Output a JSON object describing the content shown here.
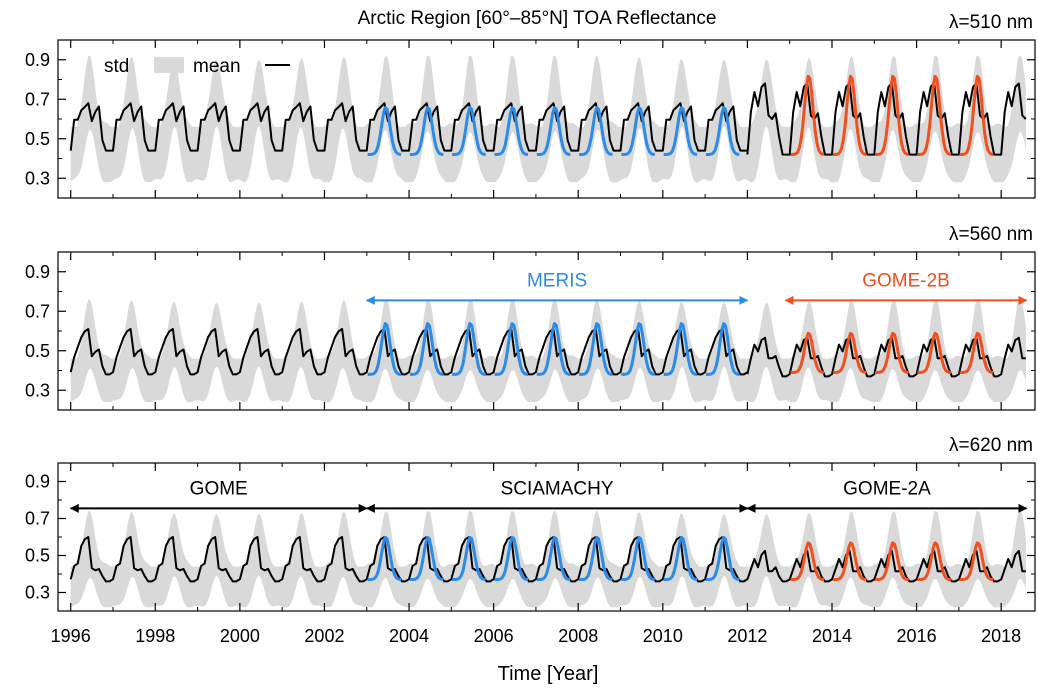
{
  "title": "Arctic Region [60°–85°N] TOA Reflectance",
  "xlabel": "Time [Year]",
  "colors": {
    "mean": "#000000",
    "std": "#d9d9d9",
    "meris": "#2b8be8",
    "gome2b": "#f0501e",
    "instrument": "#000000"
  },
  "legend": {
    "std_label": "std",
    "mean_label": "mean",
    "placement": "top-left of top panel"
  },
  "chart_data": [
    {
      "type": "line",
      "panel": "top",
      "wavelength_label": "λ=510 nm",
      "xlim": [
        1995.7,
        2018.8
      ],
      "ylim": [
        0.2,
        1.0
      ],
      "xticks": [
        "1996",
        "1998",
        "2000",
        "2002",
        "2004",
        "2006",
        "2008",
        "2010",
        "2012",
        "2014",
        "2016",
        "2018"
      ],
      "yticks": [
        "0.3",
        "0.5",
        "0.7",
        "0.9"
      ],
      "series": [
        {
          "name": "mean",
          "segments": [
            {
              "years": [
                1996.0,
                2012.0
              ],
              "min": 0.44,
              "max": 0.68,
              "shape": [
                0.0,
                0.65,
                0.65,
                0.85,
                0.92,
                1.0,
                0.62,
                0.82,
                0.93,
                0.22,
                0.0,
                0.0
              ]
            },
            {
              "years": [
                2012.0,
                2018.6
              ],
              "min": 0.42,
              "max": 0.78,
              "shape": [
                0.0,
                0.6,
                0.88,
                0.68,
                0.95,
                1.0,
                0.55,
                0.5,
                0.58,
                0.25,
                0.0,
                0.0
              ]
            }
          ]
        },
        {
          "name": "std",
          "band": {
            "years": [
              1996.0,
              2018.6
            ],
            "lower_min": 0.28,
            "lower_max": 0.58,
            "upper_min": 0.56,
            "upper_max": 0.92
          }
        },
        {
          "name": "MERIS",
          "years": [
            2003.0,
            2012.0
          ],
          "min": 0.42,
          "max": 0.66
        },
        {
          "name": "GOME-2B",
          "years": [
            2013.0,
            2018.0
          ],
          "min": 0.42,
          "max": 0.82
        }
      ]
    },
    {
      "type": "line",
      "panel": "middle",
      "wavelength_label": "λ=560 nm",
      "xlim": [
        1995.7,
        2018.8
      ],
      "ylim": [
        0.2,
        1.0
      ],
      "xticks": [
        "1996",
        "1998",
        "2000",
        "2002",
        "2004",
        "2006",
        "2008",
        "2010",
        "2012",
        "2014",
        "2016",
        "2018"
      ],
      "yticks": [
        "0.3",
        "0.5",
        "0.7",
        "0.9"
      ],
      "series": [
        {
          "name": "mean",
          "segments": [
            {
              "years": [
                1996.0,
                2012.0
              ],
              "min": 0.38,
              "max": 0.61,
              "shape": [
                0.05,
                0.38,
                0.6,
                0.82,
                0.95,
                1.0,
                0.4,
                0.5,
                0.55,
                0.18,
                0.0,
                0.0
              ]
            },
            {
              "years": [
                2012.0,
                2018.6
              ],
              "min": 0.37,
              "max": 0.6,
              "shape": [
                0.05,
                0.4,
                0.7,
                0.55,
                0.8,
                0.85,
                0.4,
                0.4,
                0.45,
                0.2,
                0.0,
                0.0
              ]
            }
          ]
        },
        {
          "name": "std",
          "band": {
            "years": [
              1996.0,
              2018.6
            ],
            "lower_min": 0.24,
            "lower_max": 0.43,
            "upper_min": 0.46,
            "upper_max": 0.76
          }
        },
        {
          "name": "MERIS",
          "years": [
            2003.0,
            2012.0
          ],
          "min": 0.38,
          "max": 0.64
        },
        {
          "name": "GOME-2B",
          "years": [
            2013.0,
            2018.0
          ],
          "min": 0.39,
          "max": 0.59
        }
      ],
      "annotations": [
        {
          "label": "MERIS",
          "x": [
            2003.0,
            2012.0
          ],
          "y": 0.755,
          "color_key": "meris"
        },
        {
          "label": "GOME-2B",
          "x": [
            2012.9,
            2018.6
          ],
          "y": 0.755,
          "color_key": "gome2b"
        }
      ]
    },
    {
      "type": "line",
      "panel": "bottom",
      "wavelength_label": "λ=620 nm",
      "xlim": [
        1995.7,
        2018.8
      ],
      "ylim": [
        0.2,
        1.0
      ],
      "xticks": [
        "1996",
        "1998",
        "2000",
        "2002",
        "2004",
        "2006",
        "2008",
        "2010",
        "2012",
        "2014",
        "2016",
        "2018"
      ],
      "yticks": [
        "0.3",
        "0.5",
        "0.7",
        "0.9"
      ],
      "series": [
        {
          "name": "mean",
          "segments": [
            {
              "years": [
                1996.0,
                2012.0
              ],
              "min": 0.36,
              "max": 0.6,
              "shape": [
                0.05,
                0.35,
                0.4,
                0.8,
                0.95,
                1.0,
                0.3,
                0.25,
                0.28,
                0.12,
                0.0,
                0.0
              ]
            },
            {
              "years": [
                2012.0,
                2018.6
              ],
              "min": 0.36,
              "max": 0.58,
              "shape": [
                0.05,
                0.3,
                0.55,
                0.35,
                0.65,
                0.75,
                0.25,
                0.25,
                0.35,
                0.12,
                0.0,
                0.0
              ]
            }
          ]
        },
        {
          "name": "std",
          "band": {
            "years": [
              1996.0,
              2018.6
            ],
            "lower_min": 0.22,
            "lower_max": 0.4,
            "upper_min": 0.44,
            "upper_max": 0.74
          }
        },
        {
          "name": "MERIS",
          "years": [
            2003.0,
            2012.0
          ],
          "min": 0.37,
          "max": 0.6
        },
        {
          "name": "GOME-2B",
          "years": [
            2013.0,
            2018.0
          ],
          "min": 0.37,
          "max": 0.57
        }
      ],
      "annotations": [
        {
          "label": "GOME",
          "x": [
            1996.0,
            2003.0
          ],
          "y": 0.755,
          "color_key": "instrument"
        },
        {
          "label": "SCIAMACHY",
          "x": [
            2003.0,
            2012.0
          ],
          "y": 0.755,
          "color_key": "instrument"
        },
        {
          "label": "GOME-2A",
          "x": [
            2012.0,
            2018.6
          ],
          "y": 0.755,
          "color_key": "instrument"
        }
      ]
    }
  ]
}
